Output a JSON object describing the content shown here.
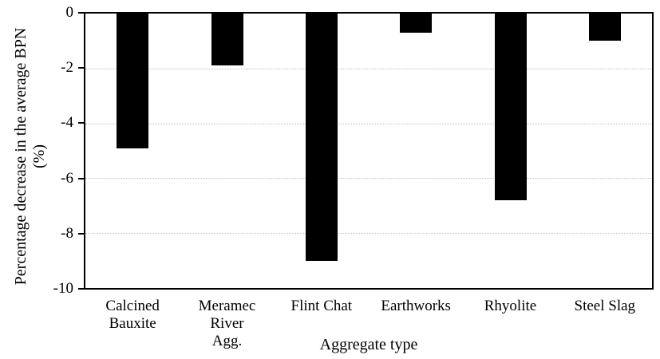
{
  "chart_data": {
    "type": "bar",
    "title": "",
    "categories": [
      "Calcined\nBauxite",
      "Meramec River\nAgg.",
      "Flint Chat",
      "Earthworks",
      "Rhyolite",
      "Steel Slag"
    ],
    "values": [
      -4.9,
      -1.9,
      -9.0,
      -0.7,
      -6.8,
      -1.0
    ],
    "xlabel": "Aggregate type",
    "ylabel": "Percentage decrease in the average BPN (%)",
    "ylabel_lines": [
      "Percentage decrease in the average BPN",
      "(%)"
    ],
    "ylim": [
      -10,
      0
    ],
    "yticks": [
      0,
      -2,
      -4,
      -6,
      -8,
      -10
    ],
    "grid_yticks": [
      -2,
      -4,
      -6,
      -8
    ],
    "grid": true,
    "legend": false,
    "bar_color": "#000000",
    "gridline_color": "#bfbfbf",
    "axis_color": "#000000",
    "background": "#ffffff"
  }
}
